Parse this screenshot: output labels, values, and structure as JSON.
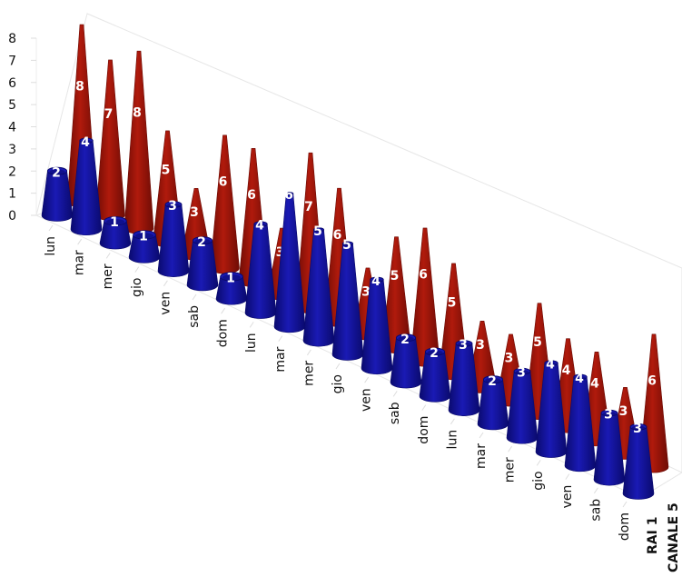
{
  "chart_data": {
    "type": "bar",
    "style": "3d-cone",
    "categories": [
      "lun",
      "mar",
      "mer",
      "gio",
      "ven",
      "sab",
      "dom",
      "lun",
      "mar",
      "mer",
      "gio",
      "ven",
      "sab",
      "dom",
      "lun",
      "mar",
      "mer",
      "gio",
      "ven",
      "sab",
      "dom"
    ],
    "series": [
      {
        "name": "RAI 1",
        "color": "#1a1ab4",
        "values": [
          2,
          4,
          1,
          1,
          3,
          2,
          1,
          4,
          6,
          5,
          5,
          4,
          2,
          2,
          3,
          2,
          3,
          4,
          4,
          3,
          3
        ]
      },
      {
        "name": "CANALE 5",
        "color": "#b01a0c",
        "values": [
          8,
          7,
          8,
          5,
          3,
          6,
          6,
          3,
          7,
          6,
          3,
          5,
          6,
          5,
          3,
          3,
          5,
          4,
          4,
          3,
          6
        ]
      }
    ],
    "yticks": [
      "0",
      "1",
      "2",
      "3",
      "4",
      "5",
      "6",
      "7",
      "8"
    ],
    "ylim": [
      0,
      8
    ],
    "grid": false
  }
}
